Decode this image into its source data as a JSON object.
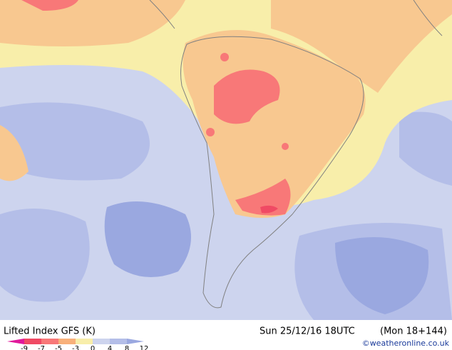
{
  "title": "Lifted Index GFS (K)",
  "valid_time": "Sun 25/12/16 18UTC",
  "forecast": "(Mon 18+144)",
  "credit": "©weatheronline.co.uk",
  "legend": {
    "stops": [
      {
        "value": -9,
        "color": "#e0189a"
      },
      {
        "value": -7,
        "color": "#f04a64"
      },
      {
        "value": -5,
        "color": "#f87878"
      },
      {
        "value": -3,
        "color": "#f8b07a"
      },
      {
        "value": 0,
        "color": "#f8eeaa"
      },
      {
        "value": 4,
        "color": "#cdd4ee"
      },
      {
        "value": 8,
        "color": "#b4bee8"
      },
      {
        "value": 12,
        "color": "#9aa8e0"
      }
    ]
  }
}
